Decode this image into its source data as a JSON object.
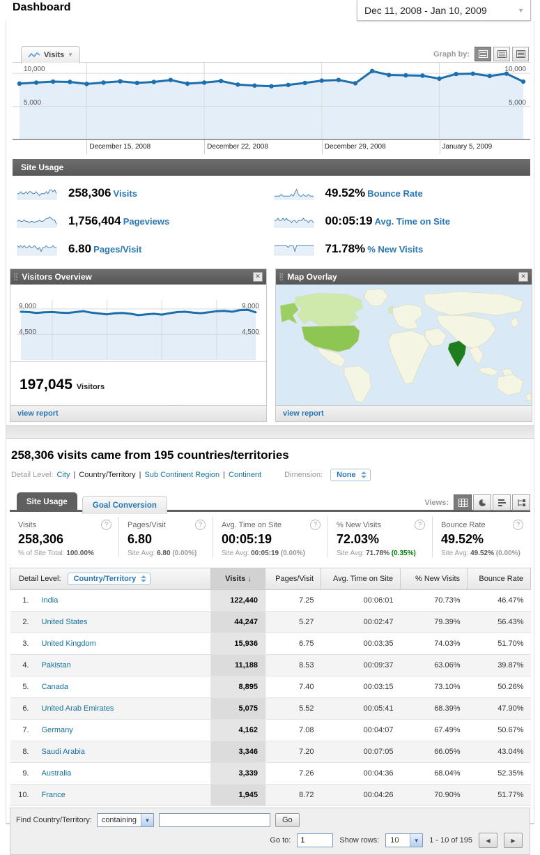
{
  "page": {
    "title": "Dashboard",
    "date_range": "Dec 11, 2008 - Jan 10, 2009"
  },
  "graph": {
    "metric_tab": "Visits",
    "graph_by_label": "Graph by:",
    "y_top": "10,000",
    "y_mid": "5,000"
  },
  "chart_data": [
    {
      "id": "visits-over-time",
      "type": "line",
      "title": "Visits",
      "categories": [
        "Dec 11, 2008",
        "Dec 12, 2008",
        "Dec 13, 2008",
        "Dec 14, 2008",
        "Dec 15, 2008",
        "Dec 16, 2008",
        "Dec 17, 2008",
        "Dec 18, 2008",
        "Dec 19, 2008",
        "Dec 20, 2008",
        "Dec 21, 2008",
        "Dec 22, 2008",
        "Dec 23, 2008",
        "Dec 24, 2008",
        "Dec 25, 2008",
        "Dec 26, 2008",
        "Dec 27, 2008",
        "Dec 28, 2008",
        "Dec 29, 2008",
        "Dec 30, 2008",
        "Dec 31, 2008",
        "Jan 1, 2009",
        "Jan 2, 2009",
        "Jan 3, 2009",
        "Jan 4, 2009",
        "Jan 5, 2009",
        "Jan 6, 2009",
        "Jan 7, 2009",
        "Jan 8, 2009",
        "Jan 9, 2009",
        "Jan 10, 2009"
      ],
      "values": [
        8450,
        8600,
        8750,
        8700,
        8400,
        8600,
        8800,
        8550,
        8700,
        9000,
        8450,
        8600,
        8850,
        8300,
        8150,
        8050,
        8250,
        8550,
        8900,
        9000,
        8500,
        10350,
        9750,
        9700,
        9650,
        9200,
        9900,
        9950,
        9600,
        9950,
        8750
      ],
      "ylim": [
        0,
        11600
      ],
      "gridlines_y": [
        5000,
        10000
      ],
      "grid_x_idx": [
        4,
        11,
        18,
        25
      ],
      "tick_idx": [
        4,
        11,
        18,
        25
      ],
      "tick_labels": [
        "December 15, 2008",
        "December 22, 2008",
        "December 29, 2008",
        "January 5, 2009"
      ],
      "dots": true,
      "color": "#1c6fad",
      "fill": "#e4eef8",
      "pad": 10,
      "line_width": 3
    },
    {
      "id": "visitors-overview",
      "type": "line",
      "title": "Visitors",
      "categories": [
        "Dec 11, 2008",
        "Dec 12, 2008",
        "Dec 13, 2008",
        "Dec 14, 2008",
        "Dec 15, 2008",
        "Dec 16, 2008",
        "Dec 17, 2008",
        "Dec 18, 2008",
        "Dec 19, 2008",
        "Dec 20, 2008",
        "Dec 21, 2008",
        "Dec 22, 2008",
        "Dec 23, 2008",
        "Dec 24, 2008",
        "Dec 25, 2008",
        "Dec 26, 2008",
        "Dec 27, 2008",
        "Dec 28, 2008",
        "Dec 29, 2008",
        "Dec 30, 2008",
        "Dec 31, 2008",
        "Jan 1, 2009",
        "Jan 2, 2009",
        "Jan 3, 2009",
        "Jan 4, 2009",
        "Jan 5, 2009",
        "Jan 6, 2009",
        "Jan 7, 2009",
        "Jan 8, 2009",
        "Jan 9, 2009",
        "Jan 10, 2009"
      ],
      "values": [
        8500,
        8450,
        8300,
        8400,
        8450,
        8350,
        8300,
        8450,
        8600,
        8350,
        8200,
        8050,
        8250,
        8300,
        8150,
        7900,
        8050,
        8150,
        8000,
        8250,
        8450,
        8500,
        8350,
        8250,
        8400,
        8600,
        8650,
        8500,
        8800,
        8850,
        8400
      ],
      "ylim": [
        0,
        10600
      ],
      "gridlines_y": [
        4500,
        9000
      ],
      "grid_x_idx": [
        4,
        11,
        18,
        25
      ],
      "dots": false,
      "color": "#1c6fad",
      "fill": "#e4eef8",
      "pad": 6,
      "line_width": 3
    }
  ],
  "site_usage": {
    "header": "Site Usage",
    "metrics": [
      {
        "value": "258,306",
        "label": "Visits",
        "spark": [
          6,
          6,
          7,
          6,
          6,
          7,
          6,
          7,
          7,
          6,
          6,
          7,
          6,
          5,
          6,
          6,
          6,
          7,
          6,
          8,
          8,
          7,
          8,
          6
        ]
      },
      {
        "value": "49.52%",
        "label": "Bounce Rate",
        "spark": [
          5,
          5,
          5,
          5,
          6,
          5,
          5,
          5,
          5,
          5,
          6,
          5,
          7,
          9,
          6,
          5,
          5,
          6,
          5,
          5,
          6,
          5,
          5,
          5
        ]
      },
      {
        "value": "1,756,404",
        "label": "Pageviews",
        "spark": [
          6,
          7,
          6,
          6,
          7,
          6,
          6,
          5,
          6,
          6,
          5,
          6,
          6,
          7,
          6,
          6,
          7,
          8,
          8,
          9,
          8,
          7,
          7,
          4
        ]
      },
      {
        "value": "00:05:19",
        "label": "Avg. Time on Site",
        "spark": [
          6,
          6,
          7,
          6,
          6,
          7,
          6,
          7,
          6,
          6,
          5,
          6,
          6,
          5,
          6,
          6,
          6,
          7,
          6,
          6,
          5,
          6,
          6,
          5
        ]
      },
      {
        "value": "6.80",
        "label": "Pages/Visit",
        "spark": [
          7,
          6,
          7,
          6,
          7,
          6,
          6,
          7,
          6,
          6,
          7,
          6,
          5,
          6,
          4,
          6,
          6,
          7,
          6,
          6,
          6,
          7,
          6,
          6
        ]
      },
      {
        "value": "71.78%",
        "label": "% New Visits",
        "spark": [
          6,
          6,
          6,
          6,
          6,
          6,
          6,
          6,
          5,
          6,
          6,
          6,
          3,
          6,
          6,
          6,
          6,
          6,
          6,
          6,
          6,
          6,
          6,
          6
        ]
      }
    ]
  },
  "widgets": {
    "visitors_overview": {
      "title": "Visitors Overview",
      "y_top": "9,000",
      "y_mid": "4,500",
      "stat_value": "197,045",
      "stat_label": "Visitors",
      "view_report": "view report"
    },
    "map_overlay": {
      "title": "Map Overlay",
      "view_report": "view report"
    }
  },
  "report": {
    "heading": "258,306 visits came from 195 countries/territories",
    "detail_level_label": "Detail Level:",
    "sep": "|",
    "detail_levels": [
      "City",
      "Country/Territory",
      "Sub Continent Region",
      "Continent"
    ],
    "dimension_label": "Dimension:",
    "dimension_value": "None",
    "tabs": [
      "Site Usage",
      "Goal Conversion"
    ],
    "views_label": "Views:",
    "help_glyph": "?",
    "scoreboard": [
      {
        "label": "Visits",
        "value": "258,306",
        "sub_prefix": "% of Site Total:",
        "sub_value": "100.00%",
        "sub_delta": "",
        "delta_color": "#999999"
      },
      {
        "label": "Pages/Visit",
        "value": "6.80",
        "sub_prefix": "Site Avg:",
        "sub_value": "6.80",
        "sub_delta": "(0.00%)",
        "delta_color": "#999999"
      },
      {
        "label": "Avg. Time on Site",
        "value": "00:05:19",
        "sub_prefix": "Site Avg:",
        "sub_value": "00:05:19",
        "sub_delta": "(0.00%)",
        "delta_color": "#999999"
      },
      {
        "label": "% New Visits",
        "value": "72.03%",
        "sub_prefix": "Site Avg:",
        "sub_value": "71.78%",
        "sub_delta": "(0.35%)",
        "delta_color": "#008000"
      },
      {
        "label": "Bounce Rate",
        "value": "49.52%",
        "sub_prefix": "Site Avg:",
        "sub_value": "49.52%",
        "sub_delta": "(0.00%)",
        "delta_color": "#999999"
      }
    ],
    "table": {
      "detail_level_label": "Detail Level:",
      "detail_level_value": "Country/Territory",
      "columns": [
        "Visits",
        "Pages/Visit",
        "Avg. Time on Site",
        "% New Visits",
        "Bounce Rate"
      ],
      "rows": [
        {
          "rank": "1.",
          "country": "India",
          "visits": "122,440",
          "pages_visit": "7.25",
          "avg_time": "00:06:01",
          "new_visits": "70.73%",
          "bounce_rate": "46.47%"
        },
        {
          "rank": "2.",
          "country": "United States",
          "visits": "44,247",
          "pages_visit": "5.27",
          "avg_time": "00:02:47",
          "new_visits": "79.39%",
          "bounce_rate": "56.43%"
        },
        {
          "rank": "3.",
          "country": "United Kingdom",
          "visits": "15,936",
          "pages_visit": "6.75",
          "avg_time": "00:03:35",
          "new_visits": "74.03%",
          "bounce_rate": "51.70%"
        },
        {
          "rank": "4.",
          "country": "Pakistan",
          "visits": "11,188",
          "pages_visit": "8.53",
          "avg_time": "00:09:37",
          "new_visits": "63.06%",
          "bounce_rate": "39.87%"
        },
        {
          "rank": "5.",
          "country": "Canada",
          "visits": "8,895",
          "pages_visit": "7.40",
          "avg_time": "00:03:15",
          "new_visits": "73.10%",
          "bounce_rate": "50.26%"
        },
        {
          "rank": "6.",
          "country": "United Arab Emirates",
          "visits": "5,075",
          "pages_visit": "5.52",
          "avg_time": "00:05:41",
          "new_visits": "68.39%",
          "bounce_rate": "47.90%"
        },
        {
          "rank": "7.",
          "country": "Germany",
          "visits": "4,162",
          "pages_visit": "7.08",
          "avg_time": "00:04:07",
          "new_visits": "67.49%",
          "bounce_rate": "50.67%"
        },
        {
          "rank": "8.",
          "country": "Saudi Arabia",
          "visits": "3,346",
          "pages_visit": "7.20",
          "avg_time": "00:07:05",
          "new_visits": "66.05%",
          "bounce_rate": "43.04%"
        },
        {
          "rank": "9.",
          "country": "Australia",
          "visits": "3,339",
          "pages_visit": "7.26",
          "avg_time": "00:04:36",
          "new_visits": "68.04%",
          "bounce_rate": "52.35%"
        },
        {
          "rank": "10.",
          "country": "France",
          "visits": "1,945",
          "pages_visit": "8.72",
          "avg_time": "00:04:26",
          "new_visits": "70.90%",
          "bounce_rate": "51.77%"
        }
      ]
    },
    "footer": {
      "find_label": "Find Country/Territory:",
      "find_mode": "containing",
      "go_button": "Go",
      "goto_label": "Go to:",
      "goto_value": "1",
      "show_rows_label": "Show rows:",
      "show_rows_value": "10",
      "range_text": "1 - 10 of 195"
    }
  }
}
